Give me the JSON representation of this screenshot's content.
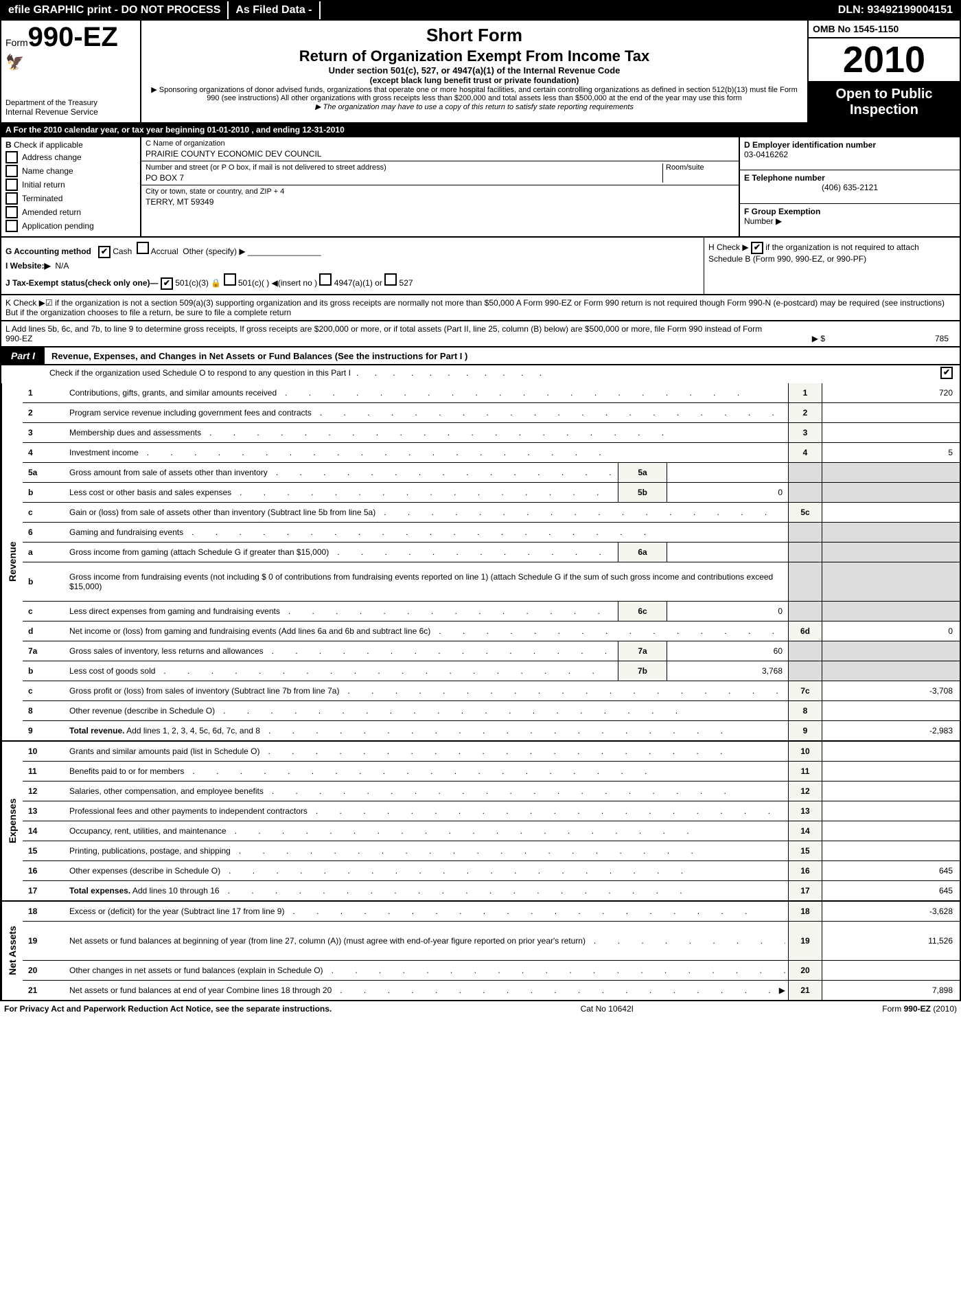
{
  "topbar": {
    "left": "efile GRAPHIC print - DO NOT PROCESS",
    "mid": "As Filed Data -",
    "right": "DLN: 93492199004151"
  },
  "header": {
    "form_prefix": "Form",
    "form_number": "990-EZ",
    "dept1": "Department of the Treasury",
    "dept2": "Internal Revenue Service",
    "short_form": "Short Form",
    "title": "Return of Organization Exempt From Income Tax",
    "subtitle": "Under section 501(c), 527, or 4947(a)(1) of the Internal Revenue Code",
    "paren": "(except black lung benefit trust or private foundation)",
    "note1": "▶ Sponsoring organizations of donor advised funds, organizations that operate one or more hospital facilities, and certain controlling organizations as defined in section 512(b)(13) must file Form 990 (see instructions) All other organizations with gross receipts less than $200,000 and total assets less than $500,000 at the end of the year may use this form",
    "note2": "▶ The organization may have to use a copy of this return to satisfy state reporting requirements",
    "omb": "OMB No 1545-1150",
    "year": "2010",
    "open1": "Open to Public",
    "open2": "Inspection"
  },
  "rowA": "A  For the 2010 calendar year, or tax year beginning 01-01-2010                               , and ending 12-31-2010",
  "blockB": {
    "b_label": "B",
    "b_check": "Check if applicable",
    "checks": [
      "Address change",
      "Name change",
      "Initial return",
      "Terminated",
      "Amended return",
      "Application pending"
    ],
    "c_label": "C Name of organization",
    "c_name": "PRAIRIE COUNTY ECONOMIC DEV COUNCIL",
    "street_label": "Number and street (or P  O  box, if mail is not delivered to street address)",
    "room_label": "Room/suite",
    "street": "PO BOX 7",
    "city_label": "City or town, state or country, and ZIP + 4",
    "city": "TERRY, MT  59349",
    "d_label": "D Employer identification number",
    "d_val": "03-0416262",
    "e_label": "E Telephone number",
    "e_val": "(406) 635-2121",
    "f_label": "F Group Exemption",
    "f_sub": "Number ▶"
  },
  "gij": {
    "g": "G Accounting method",
    "g_cash": "Cash",
    "g_accrual": "Accrual",
    "g_other": "Other (specify) ▶",
    "i": "I Website:▶",
    "i_val": "N/A",
    "j": "J Tax-Exempt status(check only one)—",
    "j1": "501(c)(3)",
    "j2": "501(c)(  ) ◀(insert no )",
    "j3": "4947(a)(1) or",
    "j4": "527",
    "h": "H  Check ▶",
    "h_text": "if the organization is not required to attach Schedule B (Form 990, 990-EZ, or 990-PF)"
  },
  "k": "K Check ▶☑  if the organization is not a section 509(a)(3) supporting organization and its gross receipts are normally not more than $50,000  A Form 990-EZ or Form 990 return is not required though Form 990-N (e-postcard) may be required (see instructions)  But if the organization chooses to file a return, be sure to file a complete return",
  "l": "L Add lines 5b, 6c, and 7b, to line 9 to determine gross receipts, If gross receipts are $200,000 or more, or if total assets (Part II, line 25, column (B) below) are $500,000 or more, file Form 990 instead of Form 990-EZ",
  "l_amt_label": "▶ $",
  "l_amt": "785",
  "part1": {
    "tab": "Part I",
    "title": "Revenue, Expenses, and Changes in Net Assets or Fund Balances (See the instructions for Part I )",
    "sub": "Check if the organization used Schedule O to respond to any question in this Part I"
  },
  "sections": {
    "revenue_label": "Revenue",
    "expenses_label": "Expenses",
    "netassets_label": "Net Assets"
  },
  "rows": [
    {
      "n": "1",
      "d": "Contributions, gifts, grants, and similar amounts received",
      "r": "1",
      "v": "720"
    },
    {
      "n": "2",
      "d": "Program service revenue including government fees and contracts",
      "r": "2",
      "v": ""
    },
    {
      "n": "3",
      "d": "Membership dues and assessments",
      "r": "3",
      "v": ""
    },
    {
      "n": "4",
      "d": "Investment income",
      "r": "4",
      "v": "5"
    },
    {
      "n": "5a",
      "d": "Gross amount from sale of assets other than inventory",
      "sub": "5a",
      "sv": ""
    },
    {
      "n": "b",
      "d": "Less  cost or other basis and sales expenses",
      "sub": "5b",
      "sv": "0"
    },
    {
      "n": "c",
      "d": "Gain or (loss) from sale of assets other than inventory (Subtract line 5b from line 5a)",
      "r": "5c",
      "v": ""
    },
    {
      "n": "6",
      "d": "Gaming and fundraising events",
      "gray": true
    },
    {
      "n": "a",
      "d": "Gross income from gaming (attach Schedule G if greater than $15,000)",
      "sub": "6a",
      "sv": "",
      "gray_r": true
    },
    {
      "n": "b",
      "d": "Gross income from fundraising events (not including $ 0 of contributions from fundraising events reported on line 1) (attach Schedule G if the sum of such gross income and contributions exceed $15,000)",
      "tall": true,
      "gray_r": true
    },
    {
      "n": "c",
      "d": "Less  direct expenses from gaming and fundraising events",
      "sub": "6c",
      "sv": "0",
      "gray_r": true
    },
    {
      "n": "d",
      "d": "Net income or (loss) from gaming and fundraising events (Add lines 6a and 6b and subtract line 6c)",
      "r": "6d",
      "v": "0"
    },
    {
      "n": "7a",
      "d": "Gross sales of inventory, less returns and allowances",
      "sub": "7a",
      "sv": "60"
    },
    {
      "n": "b",
      "d": "Less  cost of goods sold",
      "sub": "7b",
      "sv": "3,768"
    },
    {
      "n": "c",
      "d": "Gross profit or (loss) from sales of inventory (Subtract line 7b from line 7a)",
      "r": "7c",
      "v": "-3,708"
    },
    {
      "n": "8",
      "d": "Other revenue (describe in Schedule O)",
      "r": "8",
      "v": ""
    },
    {
      "n": "9",
      "d": "Total revenue. Add lines 1, 2, 3, 4, 5c, 6d, 7c, and 8",
      "bold": true,
      "r": "9",
      "v": "-2,983"
    }
  ],
  "exp_rows": [
    {
      "n": "10",
      "d": "Grants and similar amounts paid (list in Schedule O)",
      "r": "10",
      "v": ""
    },
    {
      "n": "11",
      "d": "Benefits paid to or for members",
      "r": "11",
      "v": ""
    },
    {
      "n": "12",
      "d": "Salaries, other compensation, and employee benefits",
      "r": "12",
      "v": ""
    },
    {
      "n": "13",
      "d": "Professional fees and other payments to independent contractors",
      "r": "13",
      "v": ""
    },
    {
      "n": "14",
      "d": "Occupancy, rent, utilities, and maintenance",
      "r": "14",
      "v": ""
    },
    {
      "n": "15",
      "d": "Printing, publications, postage, and shipping",
      "r": "15",
      "v": ""
    },
    {
      "n": "16",
      "d": "Other expenses (describe in Schedule O)",
      "r": "16",
      "v": "645"
    },
    {
      "n": "17",
      "d": "Total expenses. Add lines 10 through 16",
      "bold": true,
      "r": "17",
      "v": "645"
    }
  ],
  "na_rows": [
    {
      "n": "18",
      "d": "Excess or (deficit) for the year (Subtract line 17 from line 9)",
      "r": "18",
      "v": "-3,628"
    },
    {
      "n": "19",
      "d": "Net assets or fund balances at beginning of year (from line 27, column (A)) (must agree with end-of-year figure reported on prior year's return)",
      "r": "19",
      "v": "11,526",
      "tall": true
    },
    {
      "n": "20",
      "d": "Other changes in net assets or fund balances (explain in Schedule O)",
      "r": "20",
      "v": ""
    },
    {
      "n": "21",
      "d": "Net assets or fund balances at end of year  Combine lines 18 through 20",
      "r": "21",
      "v": "7,898",
      "arrow": true
    }
  ],
  "footer": {
    "left": "For Privacy Act and Paperwork Reduction Act Notice, see the separate instructions.",
    "mid": "Cat  No  10642I",
    "right_label": "Form",
    "right_form": "990-EZ",
    "right_year": "(2010)"
  }
}
